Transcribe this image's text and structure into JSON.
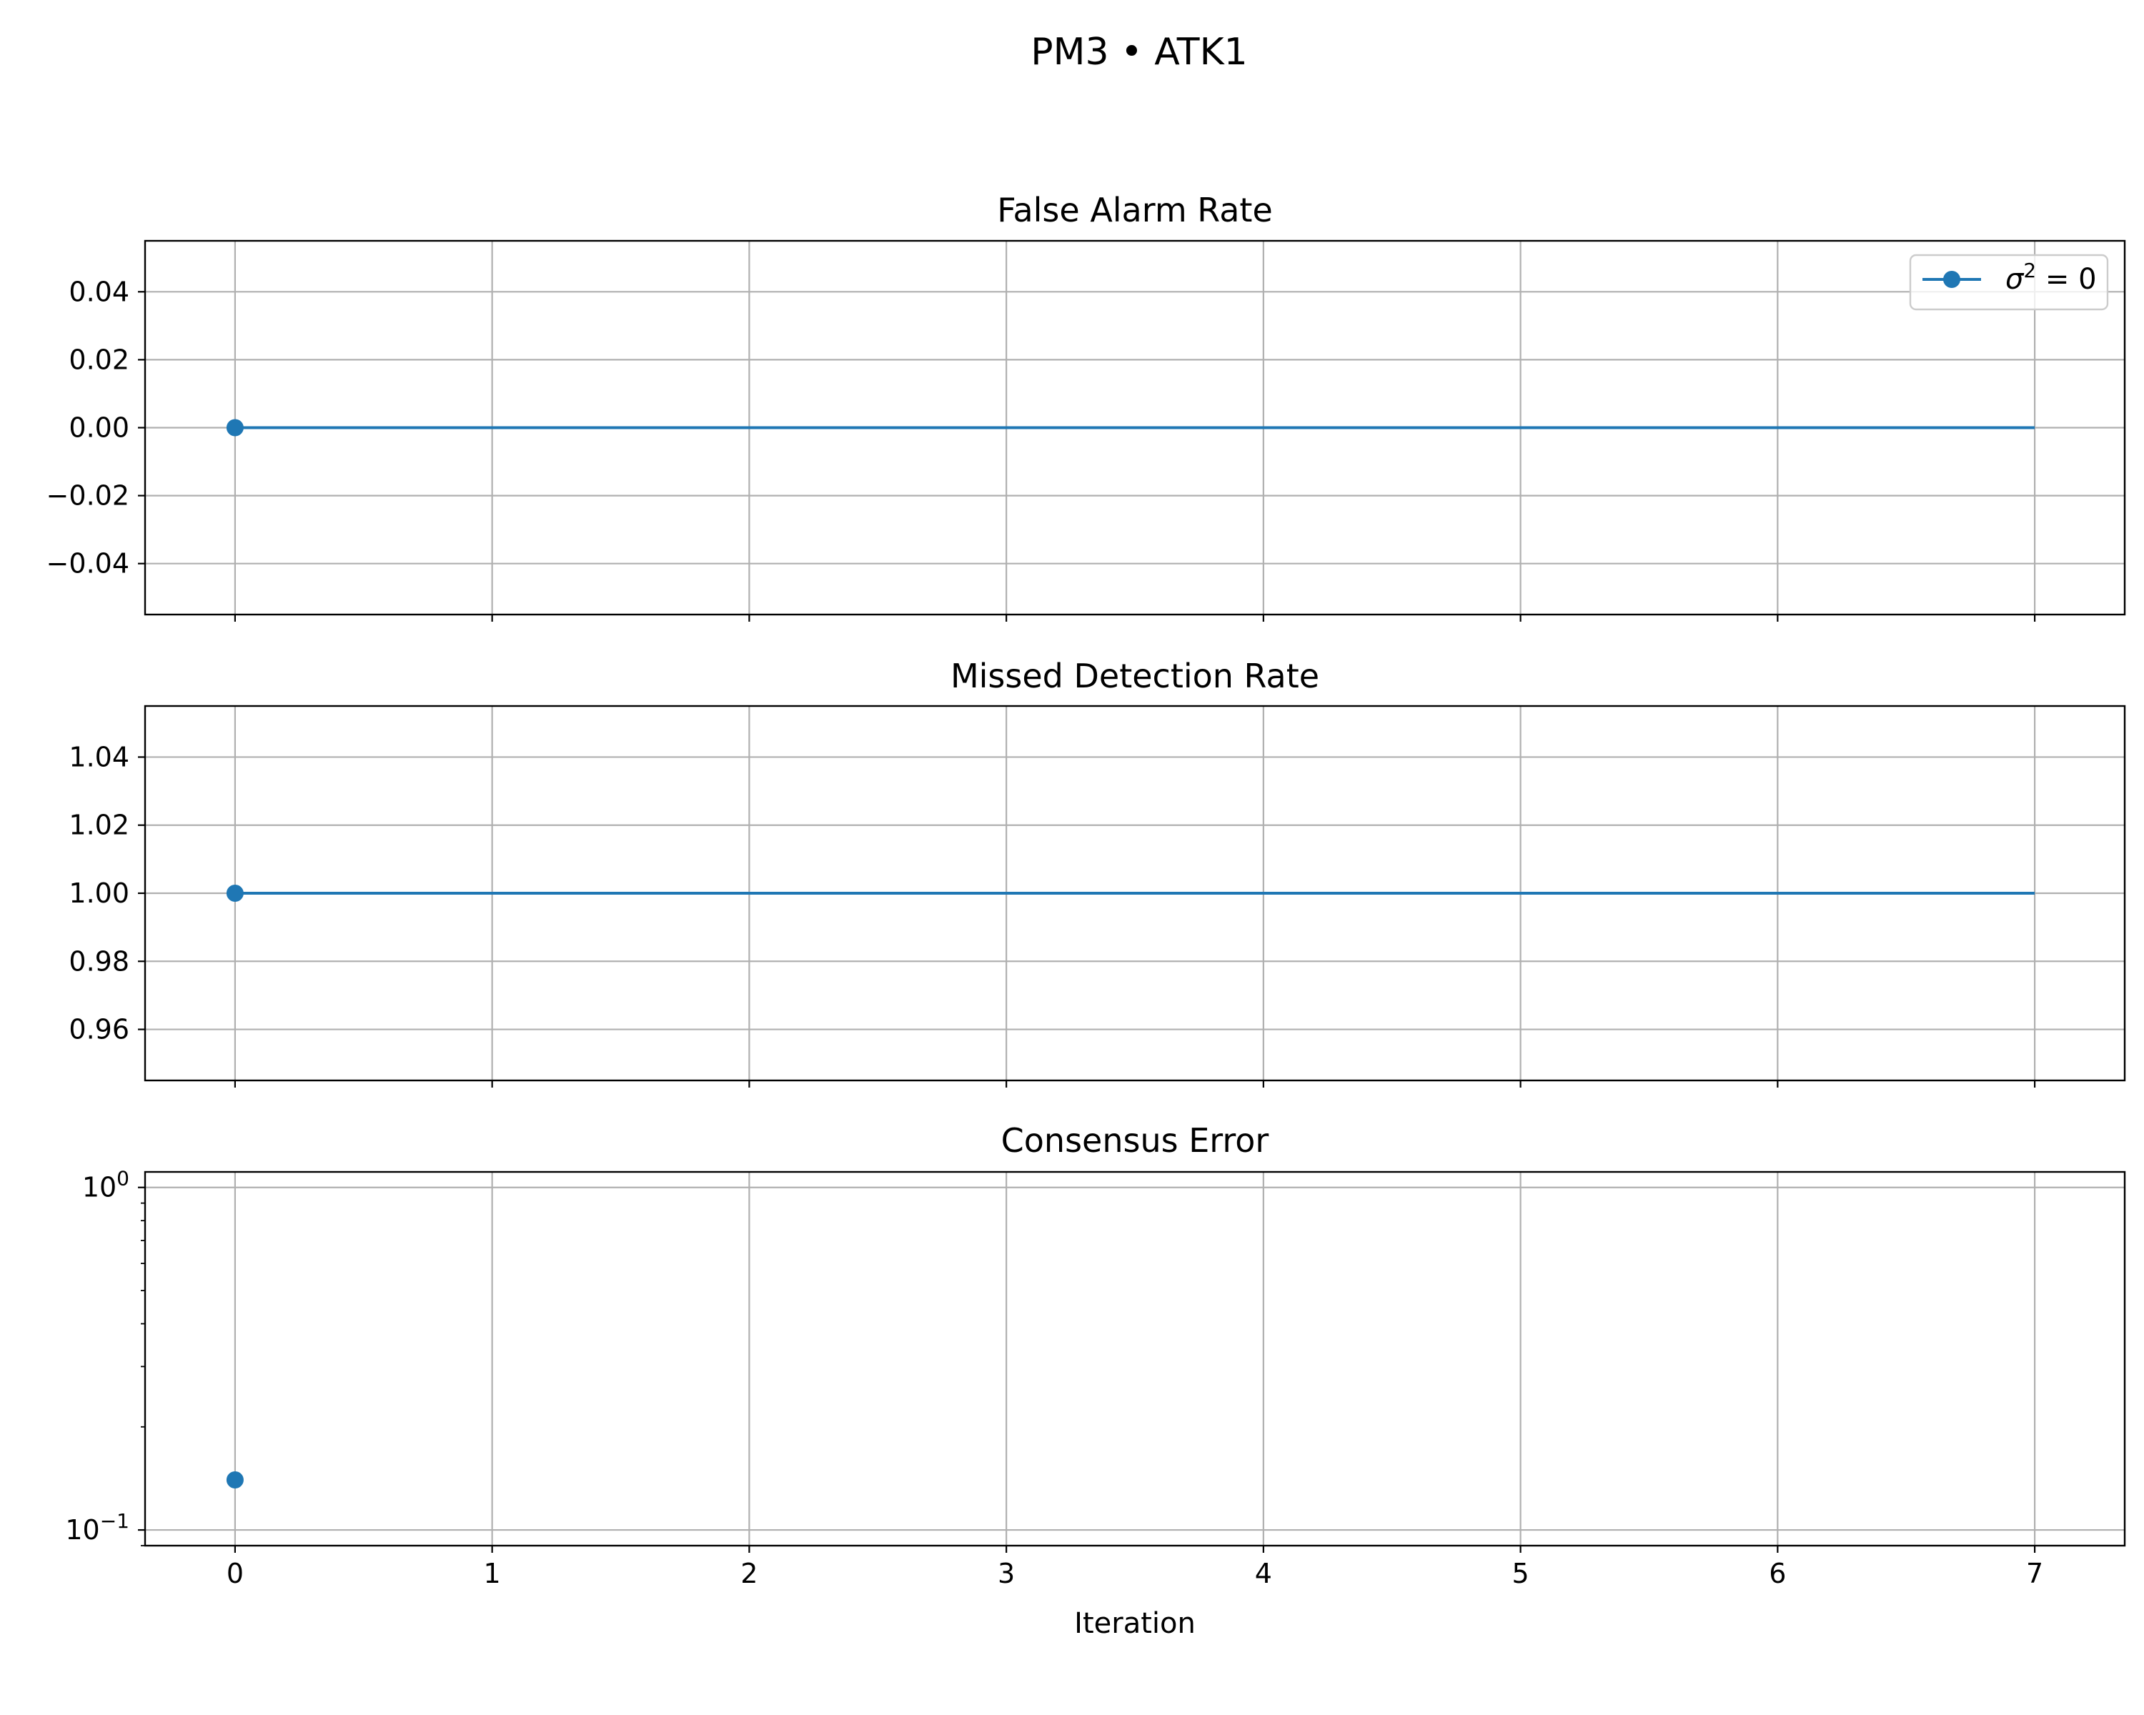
{
  "figure": {
    "suptitle": "PM3 • ATK1"
  },
  "chart_data": [
    {
      "type": "line",
      "title": "False Alarm Rate",
      "xlabel": "",
      "ylabel": "",
      "xlim": [
        -0.35,
        7.35
      ],
      "ylim": [
        -0.055,
        0.055
      ],
      "yscale": "linear",
      "grid": true,
      "x_ticks": [
        0,
        1,
        2,
        3,
        4,
        5,
        6,
        7
      ],
      "y_ticks": [
        -0.04,
        -0.02,
        0.0,
        0.02,
        0.04
      ],
      "y_tick_labels": [
        "−0.04",
        "−0.02",
        "0.00",
        "0.02",
        "0.04"
      ],
      "legend": {
        "placement": "top-right",
        "entries": [
          {
            "label_base": "σ",
            "label_sup": "2",
            "label_rest": " = 0"
          }
        ]
      },
      "series": [
        {
          "color": "#1f77b4",
          "line": {
            "x": [
              0,
              7
            ],
            "y": [
              0,
              0
            ]
          },
          "points": [
            {
              "x": 0,
              "y": 0
            }
          ]
        }
      ]
    },
    {
      "type": "line",
      "title": "Missed Detection Rate",
      "xlabel": "",
      "ylabel": "",
      "xlim": [
        -0.35,
        7.35
      ],
      "ylim": [
        0.945,
        1.055
      ],
      "yscale": "linear",
      "grid": true,
      "x_ticks": [
        0,
        1,
        2,
        3,
        4,
        5,
        6,
        7
      ],
      "y_ticks": [
        0.96,
        0.98,
        1.0,
        1.02,
        1.04
      ],
      "y_tick_labels": [
        "0.96",
        "0.98",
        "1.00",
        "1.02",
        "1.04"
      ],
      "series": [
        {
          "color": "#1f77b4",
          "line": {
            "x": [
              0,
              7
            ],
            "y": [
              1,
              1
            ]
          },
          "points": [
            {
              "x": 0,
              "y": 1
            }
          ]
        }
      ]
    },
    {
      "type": "scatter",
      "title": "Consensus Error",
      "xlabel": "Iteration",
      "ylabel": "",
      "xlim": [
        -0.35,
        7.35
      ],
      "ylim": [
        0.09,
        1.11
      ],
      "yscale": "log",
      "grid": true,
      "x_ticks": [
        0,
        1,
        2,
        3,
        4,
        5,
        6,
        7
      ],
      "x_tick_labels": [
        "0",
        "1",
        "2",
        "3",
        "4",
        "5",
        "6",
        "7"
      ],
      "y_ticks": [
        0.1,
        1
      ],
      "y_tick_labels": [
        {
          "base": "10",
          "exp": "−1"
        },
        {
          "base": "10",
          "exp": "0"
        }
      ],
      "series": [
        {
          "color": "#1f77b4",
          "line": null,
          "points": [
            {
              "x": 0,
              "y": 0.14
            }
          ]
        }
      ]
    }
  ]
}
